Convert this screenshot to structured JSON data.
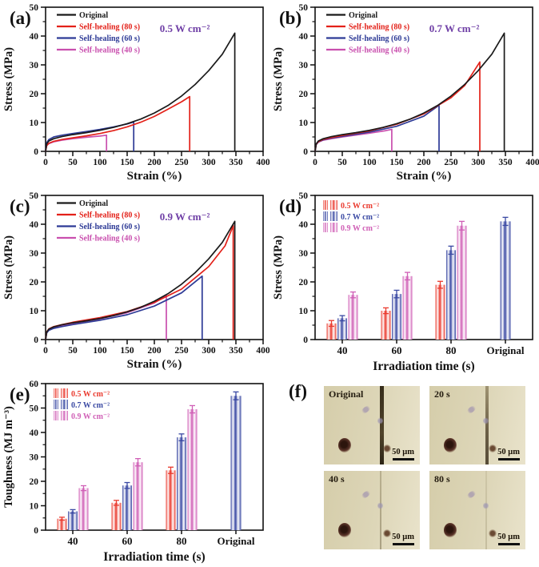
{
  "figure": {
    "background": "#ffffff"
  },
  "colors": {
    "black": "#1a1a1a",
    "red": "#e32119",
    "blue": "#2d3a96",
    "magenta": "#c94fae",
    "purple": "#6f3fa6",
    "bar_red": "#ea3a2e",
    "bar_blue": "#3a49a3",
    "bar_pink": "#d05fb6"
  },
  "chart_data": [
    {
      "id": "a",
      "panel_label": "(a)",
      "type": "line",
      "annotation": "0.5 W cm⁻²",
      "xlabel": "Strain (%)",
      "ylabel": "Stress (MPa)",
      "xlim": [
        0,
        400
      ],
      "xstep": 50,
      "ylim": [
        0,
        50
      ],
      "ystep": 10,
      "legend_position": "top-left",
      "grid": false,
      "series": [
        {
          "name": "Original",
          "color_key": "black",
          "points": [
            [
              0,
              0
            ],
            [
              2,
              2.6
            ],
            [
              6,
              3.6
            ],
            [
              15,
              4.4
            ],
            [
              30,
              5.1
            ],
            [
              50,
              5.8
            ],
            [
              75,
              6.5
            ],
            [
              100,
              7.3
            ],
            [
              125,
              8.3
            ],
            [
              150,
              9.6
            ],
            [
              175,
              11.2
            ],
            [
              200,
              13.3
            ],
            [
              225,
              15.9
            ],
            [
              250,
              19.2
            ],
            [
              275,
              23.2
            ],
            [
              300,
              28.0
            ],
            [
              325,
              33.7
            ],
            [
              348,
              41.0
            ],
            [
              348,
              0
            ]
          ]
        },
        {
          "name": "Self-healing (80 s)",
          "color_key": "red",
          "points": [
            [
              0,
              0
            ],
            [
              2,
              2.0
            ],
            [
              6,
              2.8
            ],
            [
              15,
              3.5
            ],
            [
              30,
              4.1
            ],
            [
              50,
              4.7
            ],
            [
              75,
              5.4
            ],
            [
              100,
              6.2
            ],
            [
              125,
              7.2
            ],
            [
              150,
              8.5
            ],
            [
              175,
              10.1
            ],
            [
              200,
              12.1
            ],
            [
              225,
              14.6
            ],
            [
              250,
              17.2
            ],
            [
              265,
              19.0
            ],
            [
              265,
              0
            ]
          ]
        },
        {
          "name": "Self-healing (60 s)",
          "color_key": "blue",
          "points": [
            [
              0,
              0
            ],
            [
              2,
              3.0
            ],
            [
              6,
              4.1
            ],
            [
              15,
              5.0
            ],
            [
              30,
              5.6
            ],
            [
              50,
              6.2
            ],
            [
              75,
              6.9
            ],
            [
              100,
              7.6
            ],
            [
              125,
              8.5
            ],
            [
              150,
              9.5
            ],
            [
              162,
              10.2
            ],
            [
              162,
              0
            ]
          ]
        },
        {
          "name": "Self-healing (40 s)",
          "color_key": "magenta",
          "points": [
            [
              0,
              0
            ],
            [
              2,
              2.0
            ],
            [
              6,
              2.7
            ],
            [
              15,
              3.3
            ],
            [
              30,
              3.9
            ],
            [
              50,
              4.4
            ],
            [
              75,
              4.9
            ],
            [
              100,
              5.3
            ],
            [
              112,
              5.6
            ],
            [
              112,
              0
            ]
          ]
        }
      ]
    },
    {
      "id": "b",
      "panel_label": "(b)",
      "type": "line",
      "annotation": "0.7 W cm⁻²",
      "xlabel": "Strain (%)",
      "ylabel": "Stress (MPa)",
      "xlim": [
        0,
        400
      ],
      "xstep": 50,
      "ylim": [
        0,
        50
      ],
      "ystep": 10,
      "legend_position": "top-left",
      "grid": false,
      "series": [
        {
          "name": "Original",
          "color_key": "black",
          "points": [
            [
              0,
              0
            ],
            [
              2,
              2.6
            ],
            [
              6,
              3.6
            ],
            [
              15,
              4.4
            ],
            [
              30,
              5.1
            ],
            [
              50,
              5.8
            ],
            [
              75,
              6.5
            ],
            [
              100,
              7.3
            ],
            [
              125,
              8.3
            ],
            [
              150,
              9.6
            ],
            [
              175,
              11.2
            ],
            [
              200,
              13.3
            ],
            [
              225,
              15.9
            ],
            [
              250,
              19.2
            ],
            [
              275,
              23.2
            ],
            [
              300,
              28.0
            ],
            [
              325,
              33.7
            ],
            [
              348,
              41.0
            ],
            [
              348,
              0
            ]
          ]
        },
        {
          "name": "Self-healing (80 s)",
          "color_key": "red",
          "points": [
            [
              0,
              0
            ],
            [
              2,
              2.5
            ],
            [
              6,
              3.4
            ],
            [
              15,
              4.2
            ],
            [
              30,
              4.8
            ],
            [
              50,
              5.5
            ],
            [
              100,
              7.1
            ],
            [
              150,
              9.4
            ],
            [
              200,
              13.0
            ],
            [
              250,
              18.6
            ],
            [
              275,
              22.8
            ],
            [
              303,
              31.0
            ],
            [
              303,
              0
            ]
          ]
        },
        {
          "name": "Self-healing (60 s)",
          "color_key": "blue",
          "points": [
            [
              0,
              0
            ],
            [
              2,
              2.4
            ],
            [
              6,
              3.3
            ],
            [
              15,
              4.0
            ],
            [
              30,
              4.6
            ],
            [
              50,
              5.2
            ],
            [
              100,
              6.7
            ],
            [
              150,
              8.7
            ],
            [
              200,
              12.2
            ],
            [
              228,
              16.0
            ],
            [
              228,
              0
            ]
          ]
        },
        {
          "name": "Self-healing (40 s)",
          "color_key": "magenta",
          "points": [
            [
              0,
              0
            ],
            [
              2,
              2.4
            ],
            [
              6,
              3.2
            ],
            [
              15,
              3.9
            ],
            [
              30,
              4.4
            ],
            [
              50,
              5.0
            ],
            [
              100,
              6.3
            ],
            [
              130,
              7.2
            ],
            [
              141,
              7.6
            ],
            [
              141,
              0
            ]
          ]
        }
      ]
    },
    {
      "id": "c",
      "panel_label": "(c)",
      "type": "line",
      "annotation": "0.9 W cm⁻²",
      "xlabel": "Strain (%)",
      "ylabel": "Stress (MPa)",
      "xlim": [
        0,
        400
      ],
      "xstep": 50,
      "ylim": [
        0,
        50
      ],
      "ystep": 10,
      "legend_position": "top-left",
      "grid": false,
      "series": [
        {
          "name": "Original",
          "color_key": "black",
          "points": [
            [
              0,
              0
            ],
            [
              2,
              2.6
            ],
            [
              6,
              3.6
            ],
            [
              15,
              4.4
            ],
            [
              30,
              5.1
            ],
            [
              50,
              5.8
            ],
            [
              75,
              6.5
            ],
            [
              100,
              7.3
            ],
            [
              125,
              8.3
            ],
            [
              150,
              9.6
            ],
            [
              175,
              11.2
            ],
            [
              200,
              13.3
            ],
            [
              225,
              15.9
            ],
            [
              250,
              19.2
            ],
            [
              275,
              23.2
            ],
            [
              300,
              28.0
            ],
            [
              325,
              33.7
            ],
            [
              348,
              41.0
            ],
            [
              348,
              0
            ]
          ]
        },
        {
          "name": "Self-healing (80 s)",
          "color_key": "red",
          "points": [
            [
              0,
              0
            ],
            [
              2,
              2.7
            ],
            [
              6,
              3.7
            ],
            [
              15,
              4.5
            ],
            [
              30,
              5.2
            ],
            [
              50,
              6.0
            ],
            [
              100,
              7.6
            ],
            [
              150,
              9.7
            ],
            [
              200,
              12.9
            ],
            [
              250,
              17.5
            ],
            [
              300,
              25.3
            ],
            [
              330,
              32.5
            ],
            [
              345,
              39.5
            ],
            [
              345,
              0
            ]
          ]
        },
        {
          "name": "Self-healing (60 s)",
          "color_key": "blue",
          "points": [
            [
              0,
              0
            ],
            [
              2,
              2.3
            ],
            [
              6,
              3.2
            ],
            [
              15,
              3.9
            ],
            [
              30,
              4.5
            ],
            [
              50,
              5.2
            ],
            [
              100,
              6.7
            ],
            [
              150,
              8.6
            ],
            [
              200,
              11.6
            ],
            [
              250,
              16.2
            ],
            [
              288,
              22.0
            ],
            [
              288,
              0
            ]
          ]
        },
        {
          "name": "Self-healing (40 s)",
          "color_key": "magenta",
          "points": [
            [
              0,
              0
            ],
            [
              2,
              2.5
            ],
            [
              6,
              3.4
            ],
            [
              15,
              4.2
            ],
            [
              30,
              4.9
            ],
            [
              50,
              5.6
            ],
            [
              100,
              7.2
            ],
            [
              150,
              9.3
            ],
            [
              200,
              12.7
            ],
            [
              222,
              15.3
            ],
            [
              222,
              0
            ]
          ]
        }
      ]
    },
    {
      "id": "d",
      "panel_label": "(d)",
      "type": "bar",
      "xlabel": "Irradiation time (s)",
      "ylabel": "Stress (MPa)",
      "ylim": [
        0,
        50
      ],
      "ystep": 10,
      "grid": false,
      "legend_position": "top-left",
      "categories": [
        "40",
        "60",
        "80",
        "Original"
      ],
      "series": [
        {
          "name": "0.5 W cm⁻²",
          "color_key": "bar_red",
          "values": [
            5.6,
            10.0,
            19.0,
            null
          ],
          "errors": [
            1.0,
            1.0,
            1.2,
            null
          ]
        },
        {
          "name": "0.7 W cm⁻²",
          "color_key": "bar_blue",
          "values": [
            7.4,
            15.8,
            31.0,
            41.0
          ],
          "errors": [
            0.9,
            1.3,
            1.4,
            1.4
          ]
        },
        {
          "name": "0.9 W cm⁻²",
          "color_key": "bar_pink",
          "values": [
            15.5,
            22.0,
            39.5,
            null
          ],
          "errors": [
            1.0,
            1.3,
            1.5,
            null
          ]
        }
      ]
    },
    {
      "id": "e",
      "panel_label": "(e)",
      "type": "bar",
      "xlabel": "Irradiation time (s)",
      "ylabel": "Toughness (MJ m⁻³)",
      "ylim": [
        0,
        60
      ],
      "ystep": 10,
      "grid": false,
      "legend_position": "top-left",
      "categories": [
        "40",
        "60",
        "80",
        "Original"
      ],
      "series": [
        {
          "name": "0.5 W cm⁻²",
          "color_key": "bar_red",
          "values": [
            4.7,
            11.2,
            24.5,
            null
          ],
          "errors": [
            0.6,
            1.0,
            1.3,
            null
          ]
        },
        {
          "name": "0.7 W cm⁻²",
          "color_key": "bar_blue",
          "values": [
            7.7,
            18.3,
            38.0,
            55.0
          ],
          "errors": [
            0.7,
            1.2,
            1.4,
            1.6
          ]
        },
        {
          "name": "0.9 W cm⁻²",
          "color_key": "bar_pink",
          "values": [
            17.2,
            27.8,
            49.5,
            null
          ],
          "errors": [
            1.0,
            1.5,
            1.5,
            null
          ]
        }
      ]
    }
  ],
  "micrographs": {
    "panel_label": "(f)",
    "tiles": [
      {
        "label": "Original",
        "scale_label": "50 μm",
        "scratch": "dark"
      },
      {
        "label": "20 s",
        "scale_label": "50 μm",
        "scratch": "medium"
      },
      {
        "label": "40 s",
        "scale_label": "50 μm",
        "scratch": "faint"
      },
      {
        "label": "80 s",
        "scale_label": "50 μm",
        "scratch": "ghost"
      }
    ]
  }
}
